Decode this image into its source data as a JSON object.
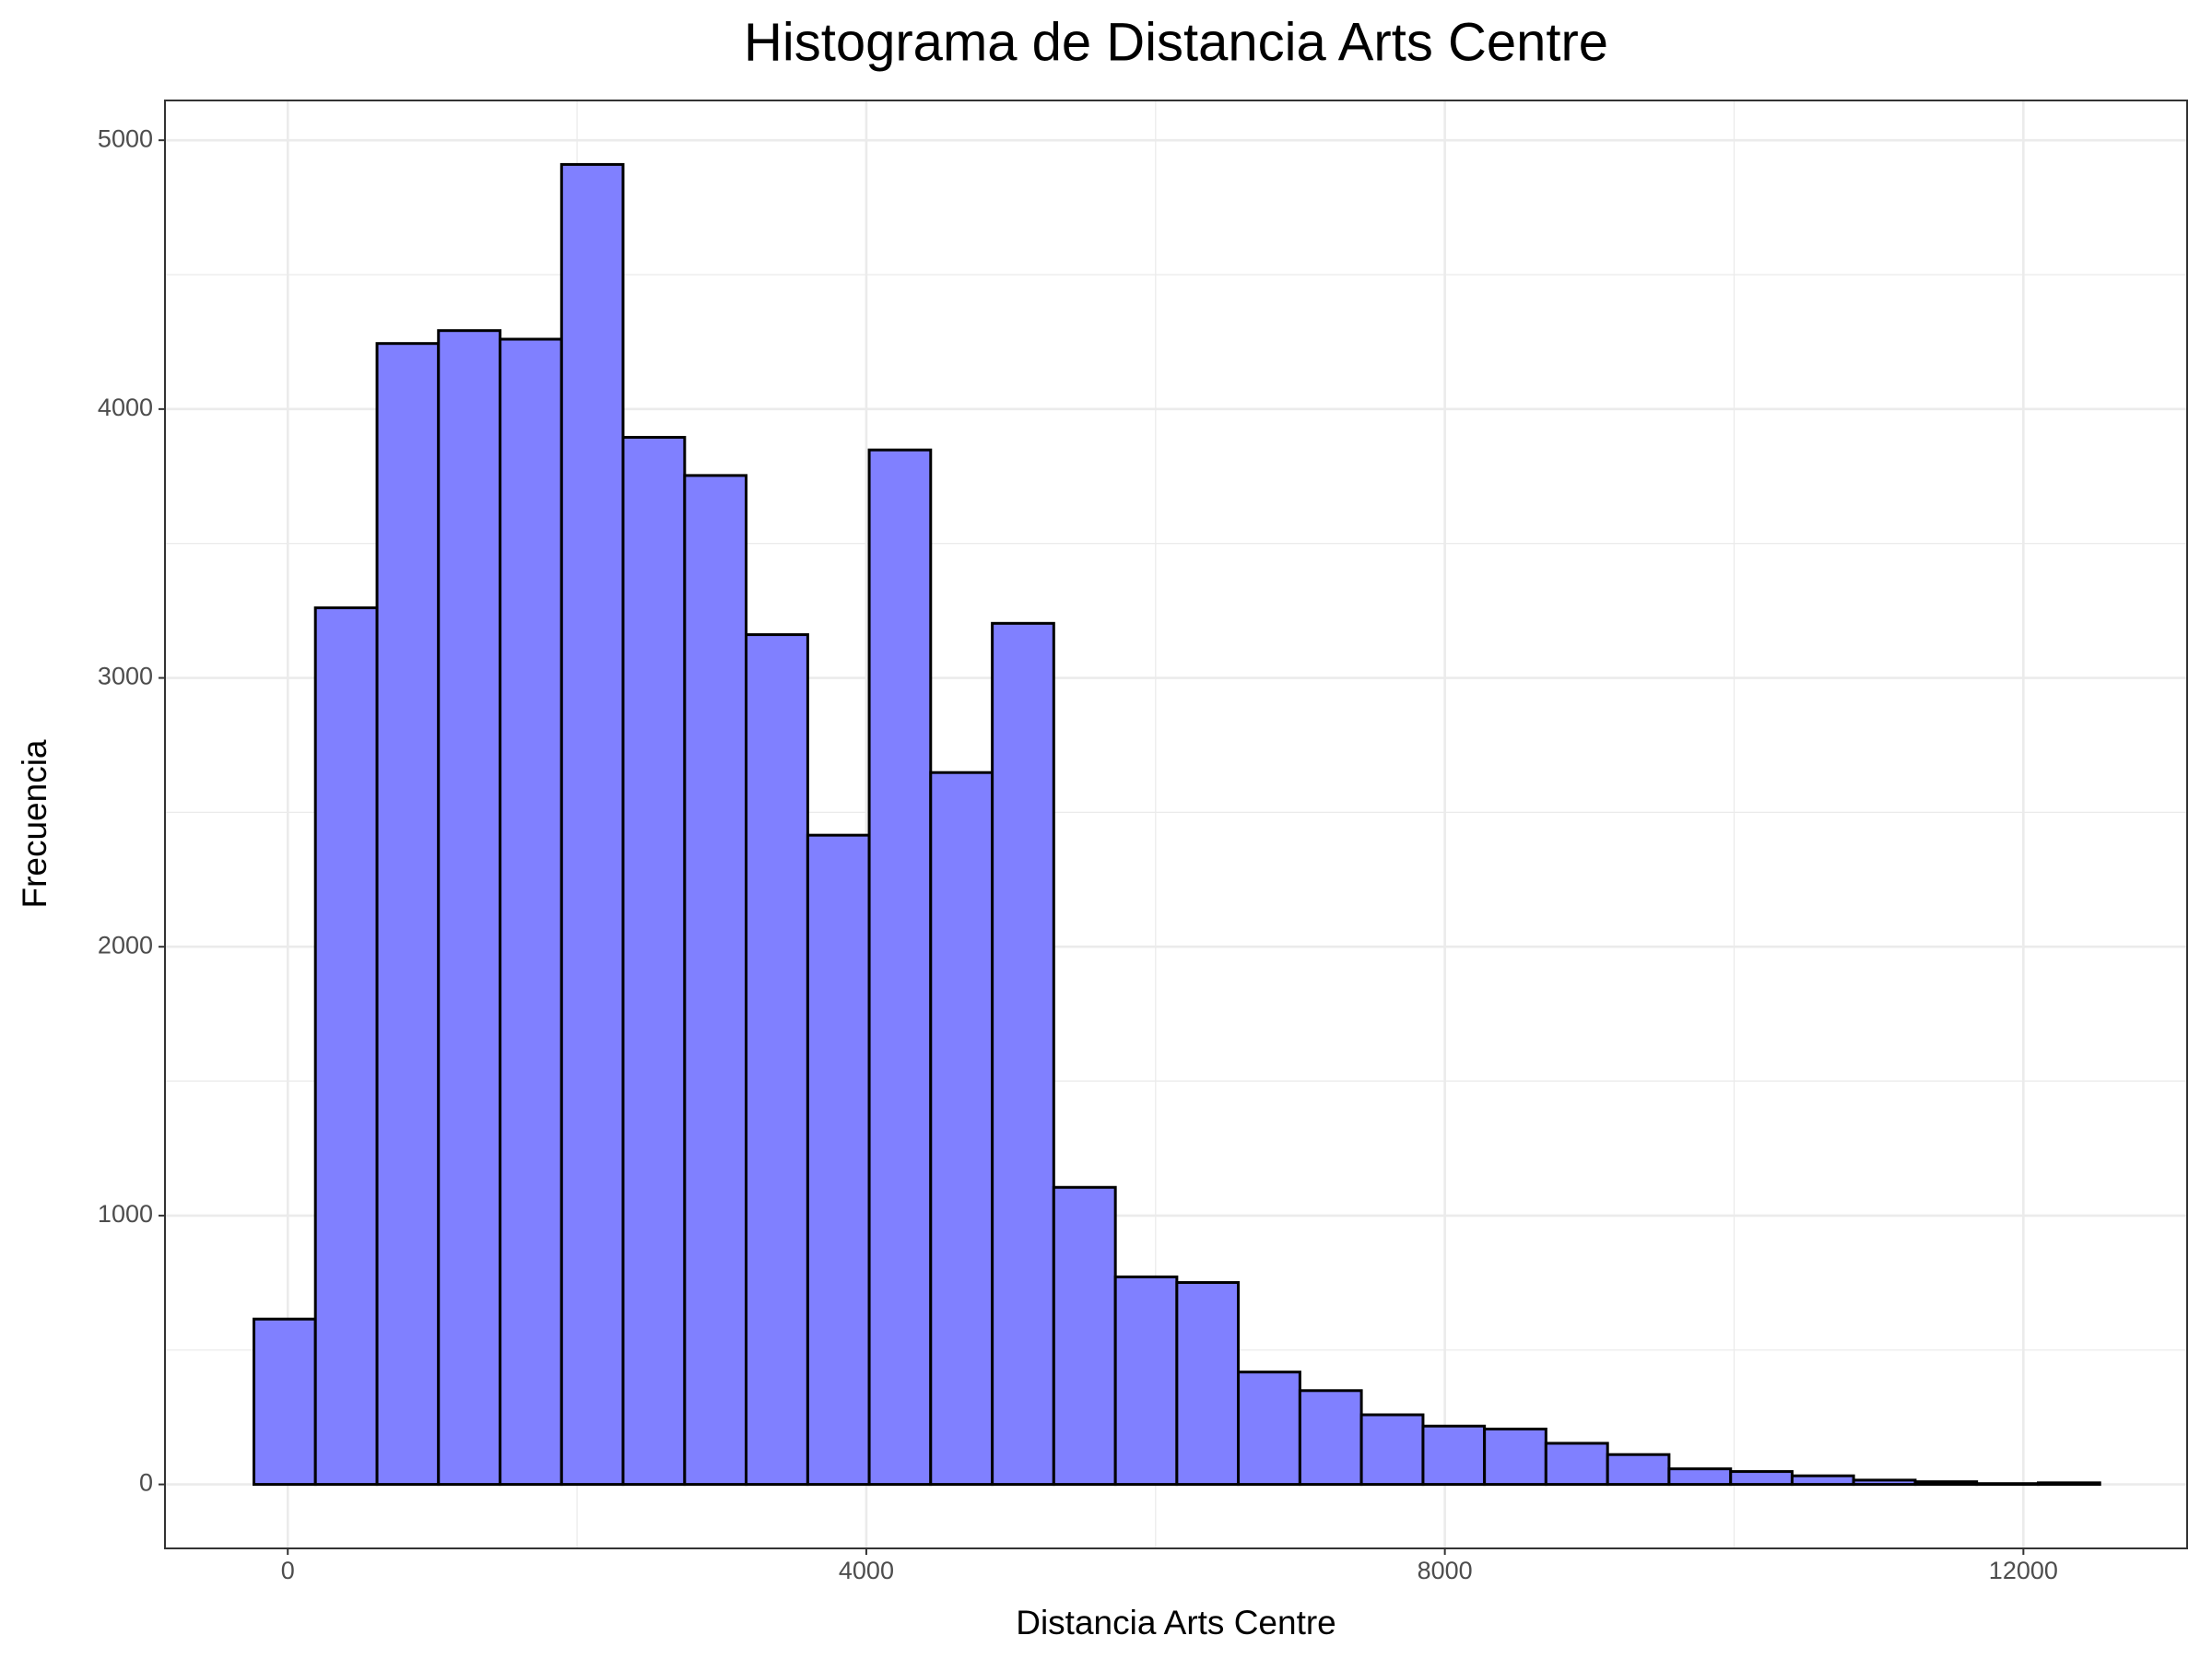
{
  "chart_data": {
    "type": "histogram",
    "title": "Histograma de Distancia Arts Centre",
    "x_label": "Distancia Arts Centre",
    "y_label": "Frecuencia",
    "bins": [
      -234,
      191,
      617,
      1042,
      1468,
      1893,
      2318,
      2744,
      3169,
      3595,
      4020,
      4445,
      4871,
      5296,
      5722,
      6147,
      6572,
      6998,
      7423,
      7849,
      8274,
      8699,
      9125,
      9550,
      9976,
      10401,
      10826,
      11252,
      11677,
      12103,
      12528
    ],
    "values": [
      615,
      3261,
      4244,
      4292,
      4260,
      4910,
      3895,
      3753,
      3161,
      2415,
      3848,
      2648,
      3203,
      1105,
      772,
      751,
      418,
      349,
      259,
      217,
      206,
      153,
      111,
      58,
      48,
      32,
      16,
      10,
      3,
      6
    ],
    "color": "#8080ff",
    "edge_color": "#000000",
    "xlim": [
      -849,
      13132
    ],
    "ylim": [
      -238,
      5148
    ],
    "xticks": [
      0,
      4000,
      8000,
      12000
    ],
    "yticks": [
      0,
      1000,
      2000,
      3000,
      4000,
      5000
    ],
    "x_minor_ticks": [
      2000,
      6000,
      10000
    ],
    "y_minor_ticks": [
      500,
      1500,
      2500,
      3500,
      4500
    ],
    "grid": true
  }
}
